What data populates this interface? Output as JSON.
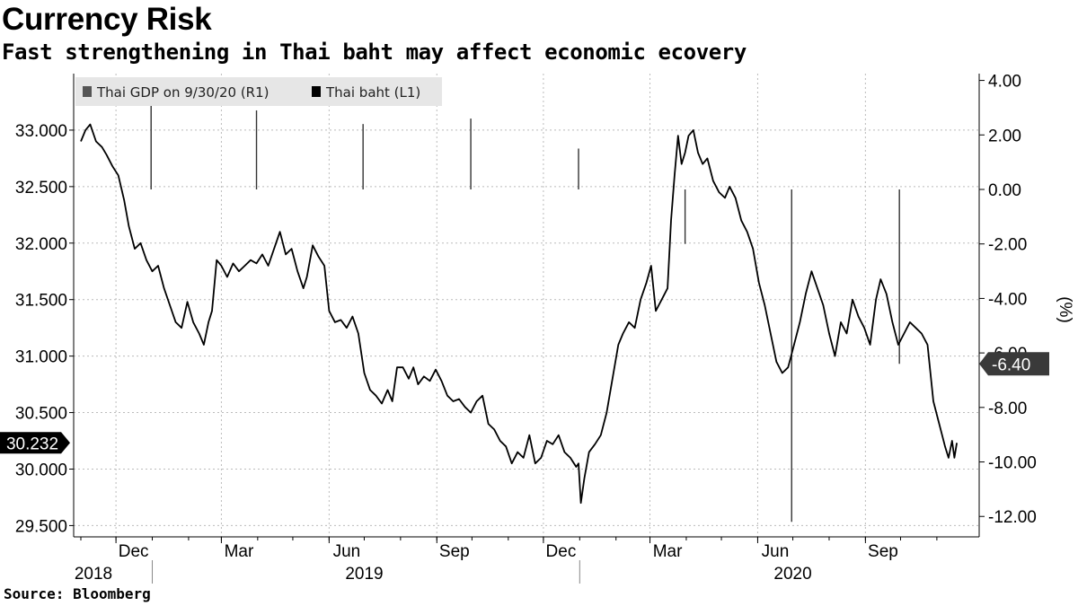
{
  "title": "Currency Risk",
  "subtitle": "Fast strengthening in Thai baht may affect economic ecovery",
  "source": "Source:  Bloomberg",
  "colors": {
    "baht_line": "#000000",
    "gdp_bars": "#333333",
    "legend_bg": "#e6e6e6",
    "grid": "#bbbbbb",
    "label_dark": "#000000",
    "label_gdp": "#3a3a3a"
  },
  "chart_data": {
    "type": "line",
    "x_axis": {
      "month_ticks": [
        "Dec",
        "Mar",
        "Jun",
        "Sep",
        "Dec",
        "Mar",
        "Jun",
        "Sep"
      ],
      "year_labels": [
        "2018",
        "2019",
        "2020"
      ]
    },
    "left_axis": {
      "ticks": [
        "33.000",
        "32.500",
        "32.000",
        "31.500",
        "31.000",
        "30.500",
        "30.000",
        "29.500"
      ],
      "ylim": [
        29.4,
        33.5
      ]
    },
    "right_axis": {
      "ticks": [
        "4.00",
        "2.00",
        "0.00",
        "-2.00",
        "-4.00",
        "-6.00",
        "-8.00",
        "-10.00",
        "-12.00"
      ],
      "label": "(%)",
      "ylim": [
        -12.75,
        4.25
      ]
    },
    "legend": [
      {
        "name": "Thai GDP on 9/30/20 (R1)",
        "color": "#555555"
      },
      {
        "name": "Thai baht (L1)",
        "color": "#000000"
      }
    ],
    "last_value_labels": {
      "baht": "30.232",
      "gdp": "-6.40"
    },
    "series": [
      {
        "name": "Thai baht (L1)",
        "axis": "left",
        "x_start": "2018-11-01",
        "points": [
          [
            "2018-11-01",
            32.9
          ],
          [
            "2018-11-05",
            33.0
          ],
          [
            "2018-11-09",
            33.05
          ],
          [
            "2018-11-14",
            32.9
          ],
          [
            "2018-11-19",
            32.85
          ],
          [
            "2018-11-23",
            32.78
          ],
          [
            "2018-11-28",
            32.68
          ],
          [
            "2018-12-03",
            32.6
          ],
          [
            "2018-12-08",
            32.38
          ],
          [
            "2018-12-12",
            32.15
          ],
          [
            "2018-12-17",
            31.95
          ],
          [
            "2018-12-22",
            32.0
          ],
          [
            "2018-12-27",
            31.85
          ],
          [
            "2019-01-01",
            31.75
          ],
          [
            "2019-01-06",
            31.8
          ],
          [
            "2019-01-11",
            31.6
          ],
          [
            "2019-01-16",
            31.45
          ],
          [
            "2019-01-21",
            31.3
          ],
          [
            "2019-01-26",
            31.25
          ],
          [
            "2019-01-31",
            31.48
          ],
          [
            "2019-02-05",
            31.3
          ],
          [
            "2019-02-10",
            31.2
          ],
          [
            "2019-02-14",
            31.1
          ],
          [
            "2019-02-18",
            31.3
          ],
          [
            "2019-02-21",
            31.4
          ],
          [
            "2019-02-25",
            31.85
          ],
          [
            "2019-03-01",
            31.8
          ],
          [
            "2019-03-06",
            31.7
          ],
          [
            "2019-03-11",
            31.82
          ],
          [
            "2019-03-16",
            31.75
          ],
          [
            "2019-03-21",
            31.8
          ],
          [
            "2019-03-26",
            31.85
          ],
          [
            "2019-03-31",
            31.82
          ],
          [
            "2019-04-05",
            31.9
          ],
          [
            "2019-04-10",
            31.8
          ],
          [
            "2019-04-15",
            31.95
          ],
          [
            "2019-04-20",
            32.1
          ],
          [
            "2019-04-25",
            31.9
          ],
          [
            "2019-04-30",
            31.95
          ],
          [
            "2019-05-05",
            31.75
          ],
          [
            "2019-05-10",
            31.6
          ],
          [
            "2019-05-13",
            31.7
          ],
          [
            "2019-05-18",
            31.98
          ],
          [
            "2019-05-23",
            31.88
          ],
          [
            "2019-05-28",
            31.8
          ],
          [
            "2019-06-01",
            31.4
          ],
          [
            "2019-06-06",
            31.3
          ],
          [
            "2019-06-11",
            31.32
          ],
          [
            "2019-06-16",
            31.25
          ],
          [
            "2019-06-21",
            31.35
          ],
          [
            "2019-06-26",
            31.2
          ],
          [
            "2019-07-01",
            30.85
          ],
          [
            "2019-07-06",
            30.7
          ],
          [
            "2019-07-11",
            30.65
          ],
          [
            "2019-07-16",
            30.58
          ],
          [
            "2019-07-21",
            30.7
          ],
          [
            "2019-07-25",
            30.6
          ],
          [
            "2019-07-29",
            30.9
          ],
          [
            "2019-08-03",
            30.9
          ],
          [
            "2019-08-08",
            30.8
          ],
          [
            "2019-08-12",
            30.9
          ],
          [
            "2019-08-16",
            30.75
          ],
          [
            "2019-08-21",
            30.82
          ],
          [
            "2019-08-26",
            30.78
          ],
          [
            "2019-08-31",
            30.88
          ],
          [
            "2019-09-05",
            30.78
          ],
          [
            "2019-09-10",
            30.65
          ],
          [
            "2019-09-15",
            30.6
          ],
          [
            "2019-09-20",
            30.62
          ],
          [
            "2019-09-25",
            30.55
          ],
          [
            "2019-09-30",
            30.5
          ],
          [
            "2019-10-05",
            30.6
          ],
          [
            "2019-10-10",
            30.65
          ],
          [
            "2019-10-15",
            30.4
          ],
          [
            "2019-10-20",
            30.35
          ],
          [
            "2019-10-25",
            30.25
          ],
          [
            "2019-10-30",
            30.2
          ],
          [
            "2019-11-04",
            30.05
          ],
          [
            "2019-11-09",
            30.15
          ],
          [
            "2019-11-14",
            30.1
          ],
          [
            "2019-11-19",
            30.3
          ],
          [
            "2019-11-24",
            30.05
          ],
          [
            "2019-11-29",
            30.1
          ],
          [
            "2019-12-04",
            30.25
          ],
          [
            "2019-12-09",
            30.22
          ],
          [
            "2019-12-14",
            30.3
          ],
          [
            "2019-12-19",
            30.15
          ],
          [
            "2019-12-24",
            30.1
          ],
          [
            "2019-12-29",
            30.02
          ],
          [
            "2019-12-31",
            30.05
          ],
          [
            "2020-01-02",
            29.7
          ],
          [
            "2020-01-05",
            29.92
          ],
          [
            "2020-01-09",
            30.15
          ],
          [
            "2020-01-14",
            30.22
          ],
          [
            "2020-01-19",
            30.3
          ],
          [
            "2020-01-24",
            30.5
          ],
          [
            "2020-01-29",
            30.8
          ],
          [
            "2020-02-03",
            31.1
          ],
          [
            "2020-02-07",
            31.2
          ],
          [
            "2020-02-12",
            31.3
          ],
          [
            "2020-02-17",
            31.25
          ],
          [
            "2020-02-22",
            31.5
          ],
          [
            "2020-02-27",
            31.65
          ],
          [
            "2020-03-02",
            31.8
          ],
          [
            "2020-03-06",
            31.4
          ],
          [
            "2020-03-11",
            31.5
          ],
          [
            "2020-03-16",
            31.6
          ],
          [
            "2020-03-19",
            32.2
          ],
          [
            "2020-03-22",
            32.6
          ],
          [
            "2020-03-25",
            32.95
          ],
          [
            "2020-03-28",
            32.7
          ],
          [
            "2020-03-31",
            32.8
          ],
          [
            "2020-04-03",
            32.95
          ],
          [
            "2020-04-07",
            33.0
          ],
          [
            "2020-04-11",
            32.8
          ],
          [
            "2020-04-15",
            32.7
          ],
          [
            "2020-04-19",
            32.75
          ],
          [
            "2020-04-24",
            32.55
          ],
          [
            "2020-04-29",
            32.45
          ],
          [
            "2020-05-04",
            32.4
          ],
          [
            "2020-05-08",
            32.5
          ],
          [
            "2020-05-13",
            32.4
          ],
          [
            "2020-05-18",
            32.2
          ],
          [
            "2020-05-23",
            32.1
          ],
          [
            "2020-05-28",
            31.95
          ],
          [
            "2020-06-02",
            31.65
          ],
          [
            "2020-06-07",
            31.45
          ],
          [
            "2020-06-12",
            31.2
          ],
          [
            "2020-06-17",
            30.95
          ],
          [
            "2020-06-22",
            30.85
          ],
          [
            "2020-06-27",
            30.9
          ],
          [
            "2020-07-02",
            31.1
          ],
          [
            "2020-07-07",
            31.3
          ],
          [
            "2020-07-12",
            31.55
          ],
          [
            "2020-07-17",
            31.75
          ],
          [
            "2020-07-22",
            31.6
          ],
          [
            "2020-07-27",
            31.45
          ],
          [
            "2020-08-01",
            31.2
          ],
          [
            "2020-08-06",
            31.0
          ],
          [
            "2020-08-11",
            31.3
          ],
          [
            "2020-08-16",
            31.2
          ],
          [
            "2020-08-21",
            31.5
          ],
          [
            "2020-08-26",
            31.35
          ],
          [
            "2020-08-31",
            31.25
          ],
          [
            "2020-09-05",
            31.1
          ],
          [
            "2020-09-10",
            31.5
          ],
          [
            "2020-09-14",
            31.68
          ],
          [
            "2020-09-19",
            31.55
          ],
          [
            "2020-09-24",
            31.3
          ],
          [
            "2020-09-29",
            31.1
          ],
          [
            "2020-10-04",
            31.2
          ],
          [
            "2020-10-09",
            31.3
          ],
          [
            "2020-10-14",
            31.25
          ],
          [
            "2020-10-19",
            31.2
          ],
          [
            "2020-10-24",
            31.1
          ],
          [
            "2020-10-29",
            30.6
          ],
          [
            "2020-11-03",
            30.4
          ],
          [
            "2020-11-08",
            30.2
          ],
          [
            "2020-11-11",
            30.1
          ],
          [
            "2020-11-14",
            30.25
          ],
          [
            "2020-11-16",
            30.1
          ],
          [
            "2020-11-18",
            30.232
          ]
        ]
      },
      {
        "name": "Thai GDP on 9/30/20 (R1)",
        "axis": "right",
        "kind": "bars",
        "points": [
          [
            "2018-12-31",
            3.8
          ],
          [
            "2019-03-31",
            2.9
          ],
          [
            "2019-06-30",
            2.4
          ],
          [
            "2019-09-30",
            2.6
          ],
          [
            "2019-12-31",
            1.5
          ],
          [
            "2020-03-31",
            -2.0
          ],
          [
            "2020-06-30",
            -12.2
          ],
          [
            "2020-09-30",
            -6.4
          ]
        ]
      }
    ]
  }
}
